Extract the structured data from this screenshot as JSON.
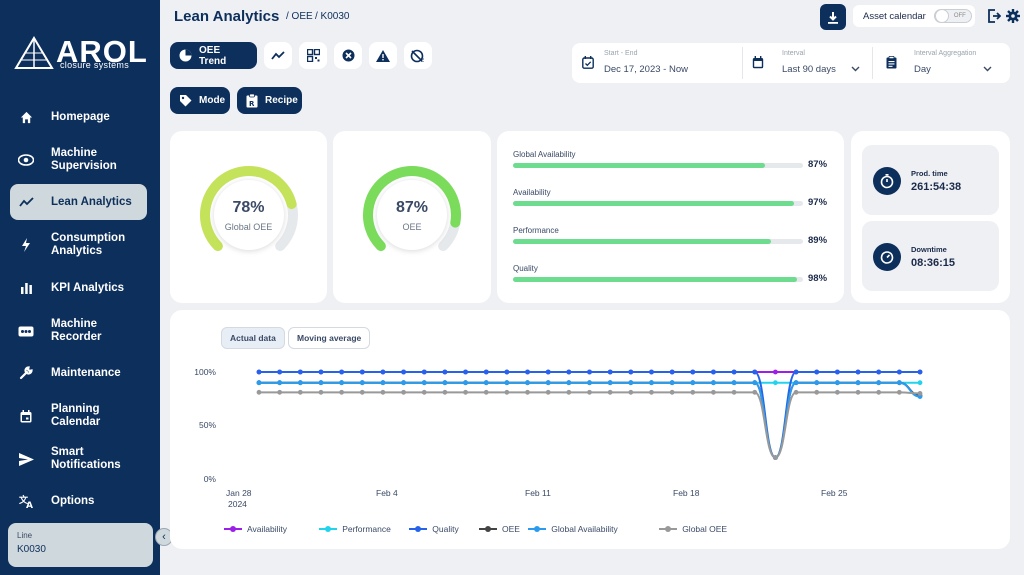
{
  "sidebar": {
    "logo_text": "AROL",
    "logo_sub": "closure systems",
    "items": [
      {
        "label": "Homepage",
        "icon": "home-icon"
      },
      {
        "label": "Machine Supervision",
        "icon": "eye-icon"
      },
      {
        "label": "Lean Analytics",
        "icon": "trend-icon",
        "active": true
      },
      {
        "label": "Consumption Analytics",
        "icon": "bolt-icon"
      },
      {
        "label": "KPI Analytics",
        "icon": "bar-chart-icon"
      },
      {
        "label": "Machine Recorder",
        "icon": "recorder-icon"
      },
      {
        "label": "Maintenance",
        "icon": "wrench-icon"
      },
      {
        "label": "Planning Calendar",
        "icon": "calendar-icon"
      },
      {
        "label": "Smart Notifications",
        "icon": "send-icon"
      },
      {
        "label": "Options",
        "icon": "translate-icon"
      }
    ],
    "line": {
      "label": "Line",
      "value": "K0030"
    }
  },
  "header": {
    "title": "Lean Analytics",
    "crumb1": "/ OEE",
    "crumb2": "/ K0030",
    "asset_calendar": "Asset calendar",
    "toggle_state": "OFF"
  },
  "toolbar": {
    "oee_trend": "OEE Trend",
    "mode": "Mode",
    "recipe": "Recipe"
  },
  "filters": {
    "range_label": "Start - End",
    "range_value": "Dec 17, 2023 - Now",
    "interval_label": "Interval",
    "interval_value": "Last 90 days",
    "agg_label": "Interval Aggregation",
    "agg_value": "Day"
  },
  "gauges": [
    {
      "value": "78%",
      "label": "Global OEE",
      "fraction": 0.78,
      "color": "#c5e35a"
    },
    {
      "value": "87%",
      "label": "OEE",
      "fraction": 0.87,
      "color": "#7bdc5c"
    }
  ],
  "bars": [
    {
      "label": "Global Availability",
      "pct": "87%",
      "fraction": 0.87
    },
    {
      "label": "Availability",
      "pct": "97%",
      "fraction": 0.97
    },
    {
      "label": "Performance",
      "pct": "89%",
      "fraction": 0.89
    },
    {
      "label": "Quality",
      "pct": "98%",
      "fraction": 0.98
    }
  ],
  "times": [
    {
      "label": "Prod. time",
      "value": "261:54:38"
    },
    {
      "label": "Downtime",
      "value": "08:36:15"
    }
  ],
  "chart_tabs": {
    "actual": "Actual data",
    "moving": "Moving average"
  },
  "chart_data": {
    "type": "line",
    "x": [
      "Jan 28",
      "Jan 29",
      "Jan 30",
      "Jan 31",
      "Feb 1",
      "Feb 2",
      "Feb 3",
      "Feb 4",
      "Feb 5",
      "Feb 6",
      "Feb 7",
      "Feb 8",
      "Feb 9",
      "Feb 10",
      "Feb 11",
      "Feb 12",
      "Feb 13",
      "Feb 14",
      "Feb 15",
      "Feb 16",
      "Feb 17",
      "Feb 18",
      "Feb 19",
      "Feb 20",
      "Feb 21",
      "Feb 22",
      "Feb 23",
      "Feb 24",
      "Feb 25",
      "Feb 26",
      "Feb 27",
      "Feb 28",
      "Mar 1"
    ],
    "xticks": [
      "Jan 28",
      "Feb 4",
      "Feb 11",
      "Feb 18",
      "Feb 25"
    ],
    "xtick_year": "2024",
    "yticks": [
      "100%",
      "50%",
      "0%"
    ],
    "ylim": [
      0,
      100
    ],
    "series": [
      {
        "name": "Availability",
        "color": "#9b1fe8",
        "values": [
          100,
          100,
          100,
          100,
          100,
          100,
          100,
          100,
          100,
          100,
          100,
          100,
          100,
          100,
          100,
          100,
          100,
          100,
          100,
          100,
          100,
          100,
          100,
          100,
          100,
          100,
          100,
          100,
          100,
          100,
          100,
          100,
          100
        ],
        "outliers": {
          "23": 100,
          "24": 100,
          "25": 100
        }
      },
      {
        "name": "Performance",
        "color": "#22d3ee",
        "values": [
          90,
          90,
          90,
          90,
          90,
          90,
          90,
          90,
          90,
          90,
          90,
          90,
          90,
          90,
          90,
          90,
          90,
          90,
          90,
          90,
          90,
          90,
          90,
          90,
          90,
          90,
          90,
          90,
          90,
          90,
          90,
          90,
          90
        ]
      },
      {
        "name": "Quality",
        "color": "#2563eb",
        "values": [
          100,
          100,
          100,
          100,
          100,
          100,
          100,
          100,
          100,
          100,
          100,
          100,
          100,
          100,
          100,
          100,
          100,
          100,
          100,
          100,
          100,
          100,
          100,
          100,
          100,
          20,
          100,
          100,
          100,
          100,
          100,
          100,
          100
        ]
      },
      {
        "name": "OEE",
        "color": "#444444",
        "values": [
          90,
          90,
          90,
          90,
          90,
          90,
          90,
          90,
          90,
          90,
          90,
          90,
          90,
          90,
          90,
          90,
          90,
          90,
          90,
          90,
          90,
          90,
          90,
          90,
          90,
          20,
          90,
          90,
          90,
          90,
          90,
          90,
          78
        ]
      },
      {
        "name": "Global Availability",
        "color": "#2b9bf0",
        "values": [
          90,
          90,
          90,
          90,
          90,
          90,
          90,
          90,
          90,
          90,
          90,
          90,
          90,
          90,
          90,
          90,
          90,
          90,
          90,
          90,
          90,
          90,
          90,
          90,
          90,
          20,
          90,
          90,
          90,
          90,
          90,
          90,
          77
        ]
      },
      {
        "name": "Global OEE",
        "color": "#999999",
        "values": [
          81,
          81,
          81,
          81,
          81,
          81,
          81,
          81,
          81,
          81,
          81,
          81,
          81,
          81,
          81,
          81,
          81,
          81,
          81,
          81,
          81,
          81,
          81,
          81,
          81,
          20,
          81,
          81,
          81,
          81,
          81,
          81,
          80
        ]
      }
    ]
  }
}
